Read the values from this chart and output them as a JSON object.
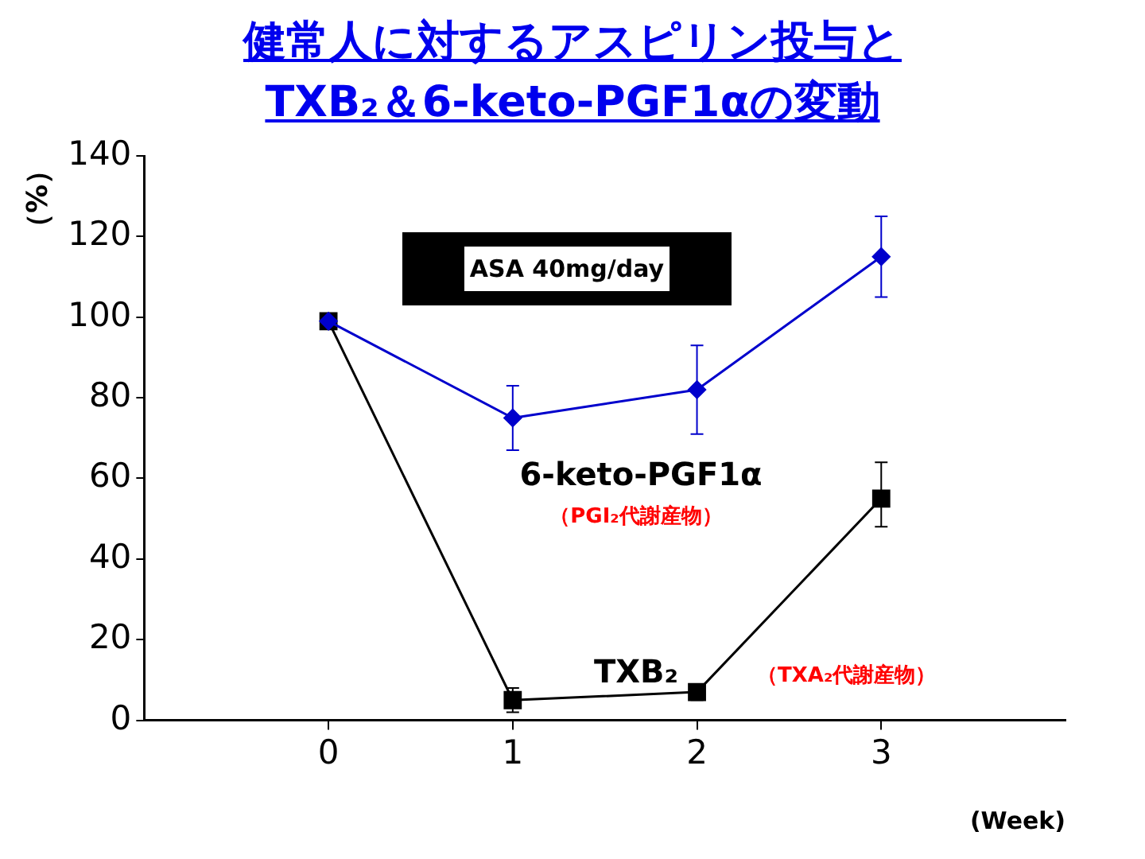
{
  "chart_data": {
    "type": "line",
    "title": "健常人に対するアスピリン投与と\nTXB₂＆6-keto-PGF1αの変動",
    "xlabel": "(Week)",
    "ylabel": "（%）",
    "x": [
      0,
      1,
      2,
      3
    ],
    "xlim": [
      -1,
      4
    ],
    "xticks": [
      0,
      1,
      2,
      3
    ],
    "ylim": [
      0,
      140
    ],
    "yticks": [
      0,
      20,
      40,
      60,
      80,
      100,
      120,
      140
    ],
    "grid": false,
    "legend": false,
    "series": [
      {
        "name": "6-keto-PGF1α",
        "color": "#0000cc",
        "marker": "diamond",
        "values": [
          99,
          75,
          82,
          115
        ],
        "errors": [
          null,
          8,
          11,
          10
        ]
      },
      {
        "name": "TXB₂",
        "color": "#000000",
        "marker": "square",
        "values": [
          99,
          5,
          7,
          55
        ],
        "errors": [
          null,
          3,
          2,
          [
            48,
            64
          ]
        ]
      }
    ],
    "annotations": [
      "ASA 40mg/day",
      "（PGI₂代謝産物）",
      "（TXA₂代謝産物）"
    ]
  }
}
